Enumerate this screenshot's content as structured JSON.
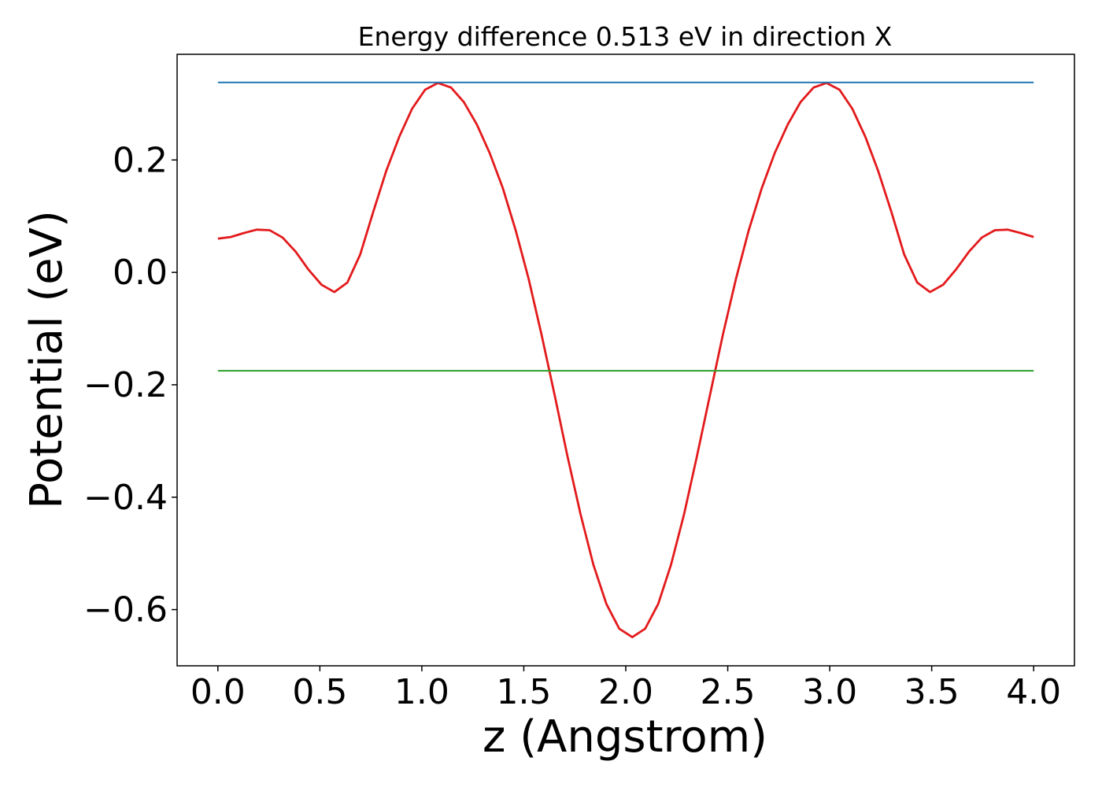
{
  "chart_data": {
    "type": "line",
    "title": "Energy difference 0.513 eV in direction X",
    "xlabel": "z (Angstrom)",
    "ylabel": "Potential (eV)",
    "xlim": [
      -0.2,
      4.2
    ],
    "ylim": [
      -0.7,
      0.388
    ],
    "xticks": [
      0.0,
      0.5,
      1.0,
      1.5,
      2.0,
      2.5,
      3.0,
      3.5,
      4.0
    ],
    "xtick_labels": [
      "0.0",
      "0.5",
      "1.0",
      "1.5",
      "2.0",
      "2.5",
      "3.0",
      "3.5",
      "4.0"
    ],
    "yticks": [
      -0.6,
      -0.4,
      -0.2,
      0.0,
      0.2
    ],
    "ytick_labels": [
      "−0.6",
      "−0.4",
      "−0.2",
      "0.0",
      "0.2"
    ],
    "grid": false,
    "series": [
      {
        "color": "#e31a1c",
        "x": [
          0.0,
          0.0635,
          0.127,
          0.19,
          0.254,
          0.317,
          0.381,
          0.444,
          0.508,
          0.571,
          0.635,
          0.698,
          0.762,
          0.825,
          0.889,
          0.952,
          1.016,
          1.079,
          1.143,
          1.206,
          1.27,
          1.333,
          1.397,
          1.46,
          1.524,
          1.587,
          1.651,
          1.714,
          1.778,
          1.841,
          1.905,
          1.968,
          2.032,
          2.095,
          2.159,
          2.222,
          2.286,
          2.349,
          2.413,
          2.476,
          2.54,
          2.603,
          2.667,
          2.73,
          2.794,
          2.857,
          2.921,
          2.984,
          3.048,
          3.111,
          3.175,
          3.238,
          3.302,
          3.365,
          3.429,
          3.492,
          3.556,
          3.619,
          3.683,
          3.746,
          3.81,
          3.873,
          3.937,
          4.0
        ],
        "y": [
          0.06,
          0.063,
          0.07,
          0.076,
          0.075,
          0.062,
          0.037,
          0.005,
          -0.022,
          -0.035,
          -0.018,
          0.032,
          0.108,
          0.18,
          0.241,
          0.291,
          0.325,
          0.337,
          0.329,
          0.303,
          0.263,
          0.212,
          0.15,
          0.075,
          -0.012,
          -0.111,
          -0.218,
          -0.327,
          -0.43,
          -0.52,
          -0.59,
          -0.634,
          -0.649,
          -0.634,
          -0.59,
          -0.52,
          -0.43,
          -0.327,
          -0.218,
          -0.111,
          -0.012,
          0.075,
          0.15,
          0.212,
          0.263,
          0.303,
          0.329,
          0.337,
          0.325,
          0.291,
          0.241,
          0.18,
          0.108,
          0.032,
          -0.018,
          -0.035,
          -0.022,
          0.005,
          0.037,
          0.062,
          0.075,
          0.076,
          0.07,
          0.063
        ]
      },
      {
        "color": "#1f77b4",
        "x": [
          0.0,
          4.0
        ],
        "y": [
          0.338,
          0.338
        ]
      },
      {
        "color": "#2ca02c",
        "x": [
          0.0,
          4.0
        ],
        "y": [
          -0.175,
          -0.175
        ]
      }
    ]
  }
}
